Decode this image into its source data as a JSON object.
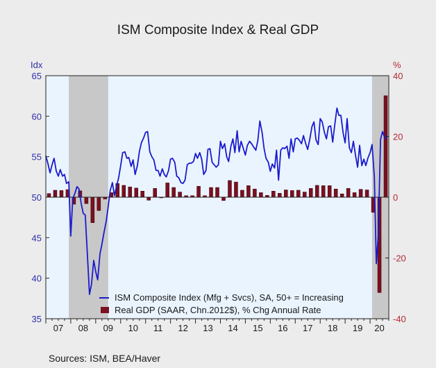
{
  "title": "ISM Composite Index & Real GDP",
  "left_unit": "Idx",
  "right_unit": "%",
  "source": "Sources:  ISM, BEA/Haver",
  "colors": {
    "ism_line": "#1a1acc",
    "gdp_bar": "#7a1020",
    "recession": "#c8c8c8",
    "plot_bg": "#eaf4ff"
  },
  "chart_data": {
    "type": "line+bar",
    "x_range": [
      2007,
      2020.75
    ],
    "x_tick_labels": [
      "07",
      "08",
      "09",
      "10",
      "11",
      "12",
      "13",
      "14",
      "15",
      "16",
      "17",
      "18",
      "19",
      "20"
    ],
    "left_axis": {
      "ylim": [
        35,
        65
      ],
      "ticks": [
        35,
        40,
        45,
        50,
        55,
        60,
        65
      ]
    },
    "right_axis": {
      "ylim": [
        -40,
        40
      ],
      "ticks": [
        -40,
        -20,
        0,
        20,
        40
      ]
    },
    "recessions": [
      [
        2007.92,
        2009.5
      ],
      [
        2020.08,
        2020.75
      ]
    ],
    "series": [
      {
        "name": "ISM Composite Index (Mfg + Svcs), SA, 50+ = Increasing",
        "axis": "left",
        "kind": "line",
        "x": [
          2007.0,
          2007.08,
          2007.17,
          2007.25,
          2007.33,
          2007.42,
          2007.5,
          2007.58,
          2007.67,
          2007.75,
          2007.83,
          2007.92,
          2008.0,
          2008.08,
          2008.17,
          2008.25,
          2008.33,
          2008.42,
          2008.5,
          2008.58,
          2008.67,
          2008.75,
          2008.83,
          2008.92,
          2009.0,
          2009.08,
          2009.17,
          2009.25,
          2009.33,
          2009.42,
          2009.5,
          2009.58,
          2009.67,
          2009.75,
          2009.83,
          2009.92,
          2010.0,
          2010.08,
          2010.17,
          2010.25,
          2010.33,
          2010.42,
          2010.5,
          2010.58,
          2010.67,
          2010.75,
          2010.83,
          2010.92,
          2011.0,
          2011.08,
          2011.17,
          2011.25,
          2011.33,
          2011.42,
          2011.5,
          2011.58,
          2011.67,
          2011.75,
          2011.83,
          2011.92,
          2012.0,
          2012.08,
          2012.17,
          2012.25,
          2012.33,
          2012.42,
          2012.5,
          2012.58,
          2012.67,
          2012.75,
          2012.83,
          2012.92,
          2013.0,
          2013.08,
          2013.17,
          2013.25,
          2013.33,
          2013.42,
          2013.5,
          2013.58,
          2013.67,
          2013.75,
          2013.83,
          2013.92,
          2014.0,
          2014.08,
          2014.17,
          2014.25,
          2014.33,
          2014.42,
          2014.5,
          2014.58,
          2014.67,
          2014.75,
          2014.83,
          2014.92,
          2015.0,
          2015.08,
          2015.17,
          2015.25,
          2015.33,
          2015.42,
          2015.5,
          2015.58,
          2015.67,
          2015.75,
          2015.83,
          2015.92,
          2016.0,
          2016.08,
          2016.17,
          2016.25,
          2016.33,
          2016.42,
          2016.5,
          2016.58,
          2016.67,
          2016.75,
          2016.83,
          2016.92,
          2017.0,
          2017.08,
          2017.17,
          2017.25,
          2017.33,
          2017.42,
          2017.5,
          2017.58,
          2017.67,
          2017.75,
          2017.83,
          2017.92,
          2018.0,
          2018.08,
          2018.17,
          2018.25,
          2018.33,
          2018.42,
          2018.5,
          2018.58,
          2018.67,
          2018.75,
          2018.83,
          2018.92,
          2019.0,
          2019.08,
          2019.17,
          2019.25,
          2019.33,
          2019.42,
          2019.5,
          2019.58,
          2019.67,
          2019.75,
          2019.83,
          2019.92,
          2020.0,
          2020.08,
          2020.17,
          2020.25,
          2020.33,
          2020.42,
          2020.5,
          2020.58,
          2020.67
        ],
        "values": [
          55.1,
          54.2,
          53.0,
          54.0,
          54.8,
          53.2,
          52.6,
          53.4,
          52.6,
          52.8,
          51.7,
          51.9,
          45.2,
          49.8,
          50.5,
          51.3,
          51.0,
          49.2,
          48.0,
          47.8,
          42.7,
          38.0,
          39.2,
          42.2,
          40.8,
          39.8,
          43.0,
          44.2,
          45.6,
          47.0,
          48.8,
          50.8,
          51.8,
          50.2,
          51.3,
          52.4,
          53.9,
          55.5,
          55.6,
          54.8,
          54.9,
          53.8,
          54.6,
          52.8,
          53.9,
          55.6,
          56.7,
          57.3,
          58.0,
          58.1,
          55.6,
          55.0,
          54.6,
          53.3,
          53.3,
          52.6,
          53.5,
          52.8,
          52.5,
          53.3,
          54.7,
          54.8,
          54.3,
          52.6,
          52.4,
          51.8,
          51.7,
          52.1,
          54.0,
          54.2,
          54.2,
          54.4,
          55.4,
          54.8,
          55.5,
          54.7,
          52.8,
          53.3,
          55.9,
          56.0,
          54.3,
          54.0,
          53.7,
          54.0,
          56.9,
          56.0,
          56.6,
          55.0,
          54.4,
          56.3,
          57.2,
          55.5,
          58.2,
          55.6,
          56.9,
          56.0,
          55.2,
          56.4,
          56.9,
          56.6,
          56.2,
          55.8,
          57.0,
          59.4,
          58.0,
          56.0,
          54.8,
          54.3,
          53.2,
          54.1,
          53.6,
          55.8,
          52.1,
          55.8,
          56.1,
          56.0,
          56.3,
          54.8,
          57.2,
          55.6,
          57.2,
          57.3,
          57.0,
          56.6,
          57.6,
          56.6,
          55.9,
          57.1,
          58.7,
          59.3,
          57.1,
          56.5,
          59.7,
          59.3,
          58.0,
          57.2,
          58.7,
          58.8,
          56.8,
          58.8,
          61.0,
          60.1,
          60.1,
          57.9,
          56.7,
          59.7,
          56.1,
          55.5,
          56.9,
          55.1,
          53.7,
          56.4,
          53.9,
          54.7,
          53.9,
          54.9,
          55.5,
          56.5,
          52.5,
          41.8,
          45.4,
          57.1,
          58.1,
          57.4,
          57.2
        ]
      },
      {
        "name": "Real GDP (SAAR, Chn.2012$), % Chg Annual Rate",
        "axis": "right",
        "kind": "bar",
        "x": [
          2007.125,
          2007.375,
          2007.625,
          2007.875,
          2008.125,
          2008.375,
          2008.625,
          2008.875,
          2009.125,
          2009.375,
          2009.625,
          2009.875,
          2010.125,
          2010.375,
          2010.625,
          2010.875,
          2011.125,
          2011.375,
          2011.625,
          2011.875,
          2012.125,
          2012.375,
          2012.625,
          2012.875,
          2013.125,
          2013.375,
          2013.625,
          2013.875,
          2014.125,
          2014.375,
          2014.625,
          2014.875,
          2015.125,
          2015.375,
          2015.625,
          2015.875,
          2016.125,
          2016.375,
          2016.625,
          2016.875,
          2017.125,
          2017.375,
          2017.625,
          2017.875,
          2018.125,
          2018.375,
          2018.625,
          2018.875,
          2019.125,
          2019.375,
          2019.625,
          2019.875,
          2020.125,
          2020.375,
          2020.625
        ],
        "values": [
          1.2,
          2.3,
          2.2,
          2.5,
          -2.3,
          2.1,
          -2.1,
          -8.4,
          -4.4,
          -0.6,
          1.5,
          4.5,
          3.9,
          3.4,
          3.0,
          2.0,
          -1.0,
          2.9,
          -0.1,
          4.7,
          3.2,
          1.7,
          0.5,
          0.5,
          3.6,
          0.5,
          3.2,
          3.2,
          -1.1,
          5.5,
          5.0,
          2.3,
          3.8,
          2.7,
          1.5,
          0.6,
          2.0,
          1.3,
          2.4,
          2.2,
          2.3,
          1.7,
          2.9,
          3.9,
          3.8,
          3.8,
          2.7,
          1.1,
          2.9,
          1.5,
          2.6,
          2.4,
          -5.0,
          -31.4,
          33.4
        ]
      }
    ]
  }
}
